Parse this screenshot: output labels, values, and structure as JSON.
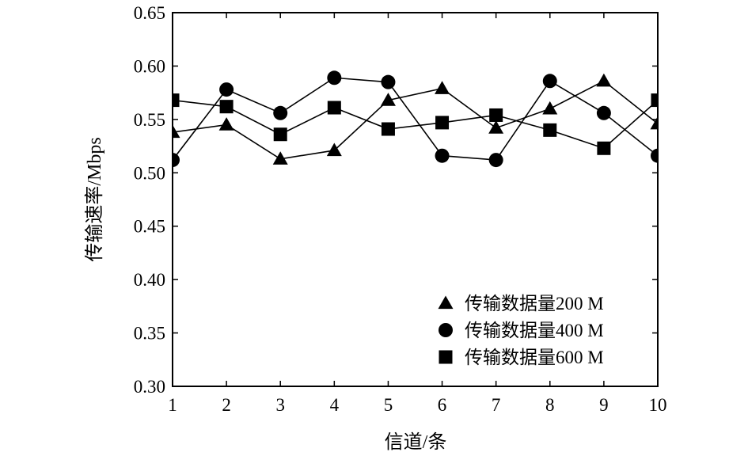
{
  "chart_data": {
    "type": "line",
    "xlabel": "信道/条",
    "ylabel": "传输速率/Mbps",
    "xlim": [
      1,
      10
    ],
    "ylim": [
      0.3,
      0.65
    ],
    "x_ticks": [
      "1",
      "2",
      "3",
      "4",
      "5",
      "6",
      "7",
      "8",
      "9",
      "10"
    ],
    "y_ticks": [
      "0.30",
      "0.35",
      "0.40",
      "0.45",
      "0.50",
      "0.55",
      "0.60",
      "0.65"
    ],
    "grid": false,
    "legend_position": "bottom-right",
    "x": [
      1,
      2,
      3,
      4,
      5,
      6,
      7,
      8,
      9,
      10
    ],
    "series": [
      {
        "name": "传输数据量200 M",
        "marker": "triangle",
        "values": [
          0.538,
          0.545,
          0.513,
          0.521,
          0.568,
          0.579,
          0.542,
          0.56,
          0.586,
          0.546
        ]
      },
      {
        "name": "传输数据量400 M",
        "marker": "circle",
        "values": [
          0.512,
          0.578,
          0.556,
          0.589,
          0.585,
          0.516,
          0.512,
          0.586,
          0.556,
          0.516
        ]
      },
      {
        "name": "传输数据量600 M",
        "marker": "square",
        "values": [
          0.568,
          0.562,
          0.536,
          0.561,
          0.541,
          0.547,
          0.554,
          0.54,
          0.523,
          0.568
        ]
      }
    ],
    "series_colors": [
      "#000000",
      "#000000",
      "#000000"
    ]
  }
}
